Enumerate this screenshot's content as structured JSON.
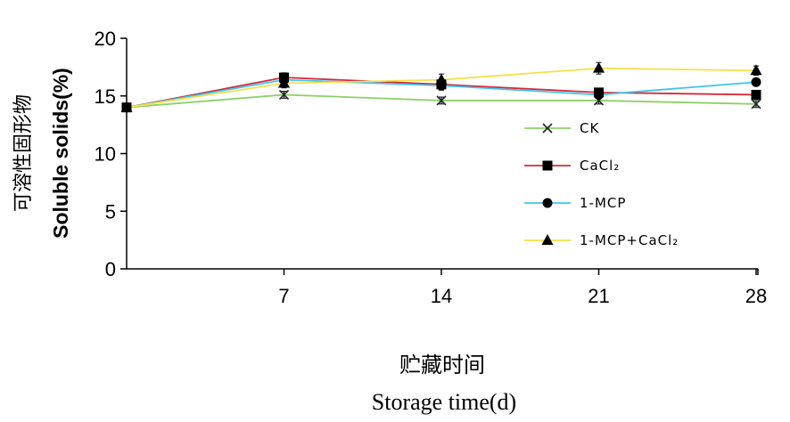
{
  "chart_data": {
    "type": "line",
    "ylabel_cn": "可溶性固形物",
    "ylabel_en": "Soluble solids(%)",
    "xlabel_cn": "贮藏时间",
    "xlabel_en": "Storage time(d)",
    "x": [
      0,
      7,
      14,
      21,
      28
    ],
    "x_tick_labels": [
      "7",
      "14",
      "21",
      "28"
    ],
    "xlim": [
      0,
      28
    ],
    "ylim": [
      0,
      20
    ],
    "y_ticks": [
      0,
      5,
      10,
      15,
      20
    ],
    "grid": false,
    "legend_position": "right-middle",
    "series": [
      {
        "name": "CK",
        "marker": "x",
        "color": "#8fd06a",
        "values": [
          14.0,
          15.1,
          14.6,
          14.6,
          14.3
        ],
        "err": [
          0.3,
          0.3,
          0.3,
          0.3,
          0.3
        ]
      },
      {
        "name": "CaCl₂",
        "marker": "square",
        "color": "#d42a3c",
        "values": [
          14.0,
          16.6,
          16.0,
          15.3,
          15.1
        ],
        "err": [
          0.3,
          0.4,
          0.4,
          0.3,
          0.3
        ]
      },
      {
        "name": "1-MCP",
        "marker": "circle",
        "color": "#3cc6ee",
        "values": [
          14.0,
          16.4,
          15.9,
          15.1,
          16.2
        ],
        "err": [
          0.3,
          0.4,
          0.4,
          0.3,
          0.3
        ]
      },
      {
        "name": "1-MCP+CaCl₂",
        "marker": "triangle",
        "color": "#f5e04a",
        "values": [
          14.0,
          16.1,
          16.4,
          17.4,
          17.2
        ],
        "err": [
          0.3,
          0.4,
          0.5,
          0.5,
          0.4
        ]
      }
    ]
  }
}
